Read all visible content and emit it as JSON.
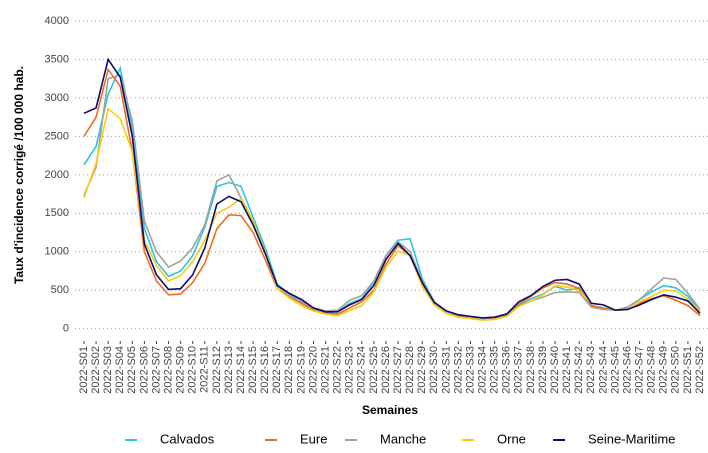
{
  "chart_data": {
    "type": "line",
    "y_label": "Taux d'incidence corrigé /100 000 hab.",
    "x_label": "Semaines",
    "categories": [
      "2022-S01",
      "2022-S02",
      "2022-S03",
      "2022-S04",
      "2022-S05",
      "2022-S06",
      "2022-S07",
      "2022-S08",
      "2022-S09",
      "2022-S10",
      "2022-S11",
      "2022-S12",
      "2022-S13",
      "2022-S14",
      "2022-S15",
      "2022-S16",
      "2022-S17",
      "2022-S18",
      "2022-S19",
      "2022-S20",
      "2022-S21",
      "2022-S22",
      "2022-S23",
      "2022-S24",
      "2022-S25",
      "2022-S26",
      "2022-S27",
      "2022-S28",
      "2022-S29",
      "2022-S30",
      "2022-S31",
      "2022-S32",
      "2022-S33",
      "2022-S34",
      "2022-S35",
      "2022-S36",
      "2022-S37",
      "2022-S38",
      "2022-S39",
      "2022-S40",
      "2022-S41",
      "2022-S42",
      "2022-S43",
      "2022-S44",
      "2022-S45",
      "2022-S46",
      "2022-S47",
      "2022-S48",
      "2022-S49",
      "2022-S50",
      "2022-S51",
      "2022-S52"
    ],
    "series": [
      {
        "name": "Calvados",
        "color": "#29c5e6",
        "values": [
          2130,
          2370,
          3050,
          3390,
          2600,
          1300,
          870,
          680,
          750,
          950,
          1320,
          1850,
          1900,
          1850,
          1450,
          1050,
          580,
          450,
          370,
          250,
          210,
          220,
          330,
          390,
          600,
          950,
          1150,
          1170,
          650,
          350,
          230,
          180,
          150,
          140,
          150,
          190,
          300,
          390,
          450,
          550,
          500,
          530,
          300,
          260,
          240,
          280,
          380,
          480,
          560,
          530,
          420,
          220
        ]
      },
      {
        "name": "Eure",
        "color": "#f26b1d",
        "values": [
          2500,
          2750,
          3370,
          3150,
          2300,
          1000,
          620,
          440,
          450,
          600,
          850,
          1300,
          1480,
          1470,
          1250,
          900,
          520,
          420,
          330,
          240,
          200,
          190,
          270,
          350,
          500,
          840,
          1080,
          950,
          580,
          310,
          200,
          160,
          140,
          130,
          140,
          170,
          320,
          420,
          530,
          600,
          580,
          520,
          300,
          270,
          240,
          250,
          330,
          390,
          430,
          370,
          300,
          170
        ]
      },
      {
        "name": "Manche",
        "color": "#a0a0a0",
        "values": [
          1730,
          2100,
          3250,
          3300,
          2700,
          1400,
          1000,
          800,
          880,
          1050,
          1350,
          1920,
          2000,
          1700,
          1400,
          1000,
          560,
          430,
          350,
          270,
          230,
          240,
          370,
          430,
          620,
          950,
          1130,
          1000,
          620,
          350,
          230,
          180,
          150,
          130,
          150,
          180,
          290,
          360,
          410,
          470,
          480,
          470,
          280,
          250,
          240,
          280,
          380,
          520,
          660,
          640,
          460,
          250
        ]
      },
      {
        "name": "Orne",
        "color": "#f7cd14",
        "values": [
          1700,
          2150,
          2860,
          2730,
          2300,
          1150,
          820,
          620,
          690,
          870,
          1150,
          1500,
          1580,
          1690,
          1400,
          1000,
          520,
          400,
          300,
          230,
          190,
          170,
          240,
          300,
          480,
          800,
          1010,
          950,
          550,
          310,
          200,
          150,
          130,
          110,
          120,
          160,
          290,
          360,
          440,
          560,
          540,
          490,
          330,
          310,
          240,
          250,
          350,
          420,
          500,
          490,
          380,
          230
        ]
      },
      {
        "name": "Seine-Maritime",
        "color": "#0d0d6b",
        "values": [
          2800,
          2870,
          3500,
          3270,
          2500,
          1100,
          700,
          510,
          520,
          700,
          1050,
          1620,
          1720,
          1650,
          1350,
          980,
          560,
          460,
          380,
          270,
          220,
          220,
          310,
          380,
          560,
          900,
          1110,
          950,
          600,
          340,
          230,
          180,
          160,
          140,
          150,
          190,
          350,
          430,
          550,
          630,
          640,
          580,
          330,
          310,
          240,
          250,
          310,
          380,
          440,
          410,
          360,
          200
        ]
      }
    ],
    "ylim": [
      -160,
      4130
    ],
    "yticks": [
      0,
      500,
      1000,
      1500,
      2000,
      2500,
      3000,
      3500,
      4000
    ],
    "grid": true
  }
}
